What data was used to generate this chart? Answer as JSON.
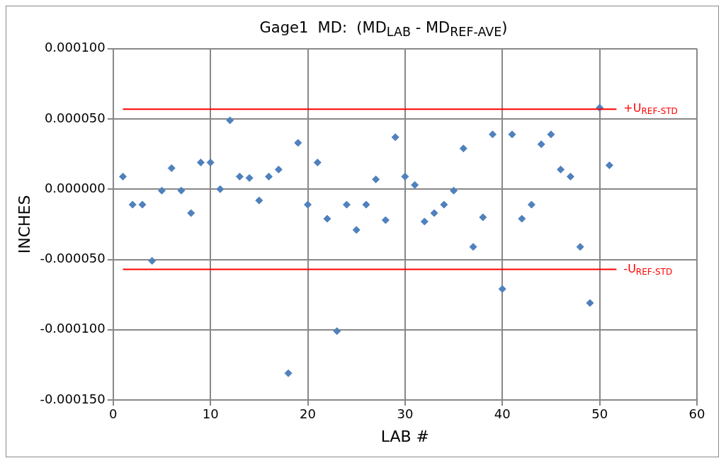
{
  "chart_data": {
    "type": "scatter",
    "title": "Gage1  MD:  (MD$_{LAB}$ - MD$_{REF-AVE}$)",
    "xlabel": "LAB #",
    "ylabel": "INCHES",
    "x": [
      1,
      2,
      3,
      4,
      5,
      6,
      7,
      8,
      9,
      10,
      11,
      12,
      13,
      14,
      15,
      16,
      17,
      18,
      19,
      20,
      21,
      22,
      23,
      24,
      25,
      26,
      27,
      28,
      29,
      30,
      31,
      32,
      33,
      34,
      35,
      36,
      37,
      38,
      39,
      40,
      41,
      42,
      43,
      44,
      45,
      46,
      47,
      48,
      49,
      50,
      51
    ],
    "series": [
      {
        "color": "#4f81bd",
        "values": [
          9e-06,
          -1.1e-05,
          -1.1e-05,
          -5.1e-05,
          -1e-06,
          1.5e-05,
          -1e-06,
          -1.7e-05,
          1.9e-05,
          1.9e-05,
          0.0,
          4.9e-05,
          9e-06,
          8e-06,
          -8e-06,
          9e-06,
          1.4e-05,
          -0.000131,
          3.3e-05,
          -1.1e-05,
          1.9e-05,
          -2.1e-05,
          -0.000101,
          -1.1e-05,
          -2.9e-05,
          -1.1e-05,
          7e-06,
          -2.2e-05,
          3.7e-05,
          9e-06,
          3e-06,
          -2.3e-05,
          -1.7e-05,
          -1.1e-05,
          -1e-06,
          2.9e-05,
          -4.1e-05,
          -2e-05,
          3.9e-05,
          -7.1e-05,
          3.9e-05,
          -2.1e-05,
          -1.1e-05,
          3.2e-05,
          3.9e-05,
          1.4e-05,
          9e-06,
          -4.1e-05,
          -8.1e-05,
          5.8e-05,
          1.7e-05
        ]
      }
    ],
    "xlim": [
      0,
      60
    ],
    "xticks": [
      0,
      10,
      20,
      30,
      40,
      50,
      60
    ],
    "ylim": [
      -0.00015,
      0.0001
    ],
    "yticks": [
      {
        "value": -0.00015,
        "label": "-0.000150"
      },
      {
        "value": -0.0001,
        "label": "-0.000100"
      },
      {
        "value": -5e-05,
        "label": "-0.000050"
      },
      {
        "value": 0,
        "label": "0.000000"
      },
      {
        "value": 5e-05,
        "label": "0.000050"
      },
      {
        "value": 0.0001,
        "label": "0.000100"
      }
    ],
    "ref_lines": [
      {
        "axis": "y",
        "value": 5.7e-05,
        "label": "+U$_{REF-STD}$",
        "color": "#ff0000"
      },
      {
        "axis": "y",
        "value": -5.7e-05,
        "label": "-U$_{REF-STD}$",
        "color": "#ff0000"
      }
    ],
    "grid": true,
    "legend": false,
    "marker": "diamond"
  }
}
